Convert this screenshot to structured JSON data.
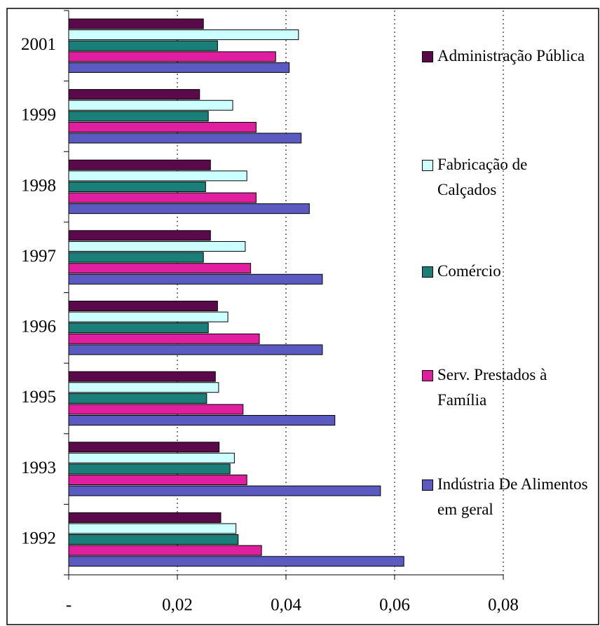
{
  "chart_data": {
    "type": "bar",
    "orientation": "horizontal",
    "categories": [
      "2001",
      "1999",
      "1998",
      "1997",
      "1996",
      "1995",
      "1993",
      "1992"
    ],
    "series": [
      {
        "name": "Administração Pública",
        "color": "#5a0a4a",
        "values": [
          0.0248,
          0.0241,
          0.0261,
          0.0261,
          0.0274,
          0.027,
          0.0277,
          0.028
        ]
      },
      {
        "name": "Fabricação de Calçados",
        "color": "#ccffff",
        "values": [
          0.0423,
          0.0302,
          0.0328,
          0.0325,
          0.0293,
          0.0276,
          0.0305,
          0.0308
        ]
      },
      {
        "name": "Comércio",
        "color": "#1a7f78",
        "values": [
          0.0274,
          0.0257,
          0.0252,
          0.0248,
          0.0257,
          0.0254,
          0.0297,
          0.0312
        ]
      },
      {
        "name": "Serv. Prestados à Família",
        "color": "#e01ea0",
        "values": [
          0.0381,
          0.0345,
          0.0345,
          0.0335,
          0.0351,
          0.0321,
          0.0328,
          0.0355
        ]
      },
      {
        "name": "Indústria De Alimentos em geral",
        "color": "#5a5ac0",
        "values": [
          0.0406,
          0.0428,
          0.0443,
          0.0467,
          0.0467,
          0.049,
          0.0574,
          0.0617
        ]
      }
    ],
    "xlim": [
      0,
      0.08
    ],
    "xticks": [
      {
        "value": 0,
        "label": "-"
      },
      {
        "value": 0.02,
        "label": "0,02"
      },
      {
        "value": 0.04,
        "label": "0,04"
      },
      {
        "value": 0.06,
        "label": "0,06"
      },
      {
        "value": 0.08,
        "label": "0,08"
      }
    ],
    "grid": true,
    "legend": "right"
  }
}
